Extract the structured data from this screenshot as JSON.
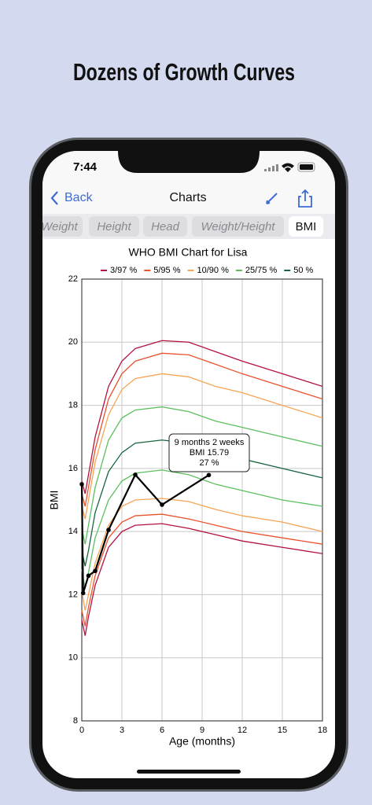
{
  "headline": "Dozens of Growth Curves",
  "status": {
    "time": "7:44"
  },
  "nav": {
    "back": "Back",
    "title": "Charts"
  },
  "tabs": [
    "Weight",
    "Height",
    "Head",
    "Weight/Height",
    "BMI"
  ],
  "selected_tab": 4,
  "chart_data": {
    "type": "line",
    "title": "WHO BMI Chart for Lisa",
    "x_label": "Age (months)",
    "y_label": "BMI",
    "xlim": [
      0,
      18
    ],
    "ylim": [
      8,
      22
    ],
    "xticks": [
      0,
      3,
      6,
      9,
      12,
      15,
      18
    ],
    "yticks": [
      8,
      10,
      12,
      14,
      16,
      18,
      20,
      22
    ],
    "grid": true,
    "x": [
      0,
      0.25,
      0.5,
      1,
      2,
      3,
      4,
      6,
      8,
      10,
      12,
      15,
      18
    ],
    "series": [
      {
        "name": "3/97 %",
        "color": "#b3123e",
        "values": [
          [
            11.2,
            10.7,
            11.3,
            12.3,
            13.5,
            14.0,
            14.2,
            14.25,
            14.1,
            13.9,
            13.7,
            13.5,
            13.3
          ],
          [
            15.6,
            15.2,
            15.8,
            17.0,
            18.6,
            19.4,
            19.8,
            20.05,
            20.0,
            19.7,
            19.4,
            19.0,
            18.6
          ]
        ]
      },
      {
        "name": "5/95 %",
        "color": "#e8522c",
        "values": [
          [
            11.5,
            11.0,
            11.6,
            12.6,
            13.8,
            14.3,
            14.5,
            14.55,
            14.4,
            14.2,
            14.0,
            13.8,
            13.6
          ],
          [
            15.2,
            14.8,
            15.4,
            16.6,
            18.2,
            19.0,
            19.4,
            19.65,
            19.6,
            19.3,
            19.0,
            18.6,
            18.2
          ]
        ]
      },
      {
        "name": "10/90 %",
        "color": "#f6a455",
        "values": [
          [
            12.1,
            11.5,
            12.0,
            13.0,
            14.2,
            14.8,
            15.0,
            15.05,
            14.95,
            14.7,
            14.5,
            14.3,
            14.0
          ],
          [
            14.8,
            14.4,
            15.0,
            16.2,
            17.7,
            18.5,
            18.85,
            19.0,
            18.9,
            18.6,
            18.4,
            18.0,
            17.6
          ]
        ]
      },
      {
        "name": "25/75 %",
        "color": "#5cbf5e",
        "values": [
          [
            12.8,
            12.2,
            12.7,
            13.8,
            15.0,
            15.6,
            15.85,
            15.95,
            15.8,
            15.5,
            15.3,
            15.0,
            14.8
          ],
          [
            14.1,
            13.6,
            14.2,
            15.4,
            16.9,
            17.6,
            17.85,
            17.95,
            17.8,
            17.5,
            17.3,
            17.0,
            16.7
          ]
        ]
      },
      {
        "name": "50 %",
        "color": "#17663f",
        "values": [
          [
            13.4,
            12.9,
            13.4,
            14.6,
            15.9,
            16.5,
            16.8,
            16.9,
            16.8,
            16.5,
            16.3,
            16.0,
            15.7
          ]
        ]
      }
    ],
    "patient": {
      "color": "#000000",
      "x": [
        0,
        0.1,
        0.5,
        1,
        2,
        4,
        6,
        9.5
      ],
      "values": [
        15.5,
        12.05,
        12.6,
        12.75,
        14.05,
        15.8,
        14.85,
        15.79
      ]
    },
    "tooltip": [
      "9 months 2 weeks",
      "BMI 15.79",
      "27 %"
    ]
  }
}
